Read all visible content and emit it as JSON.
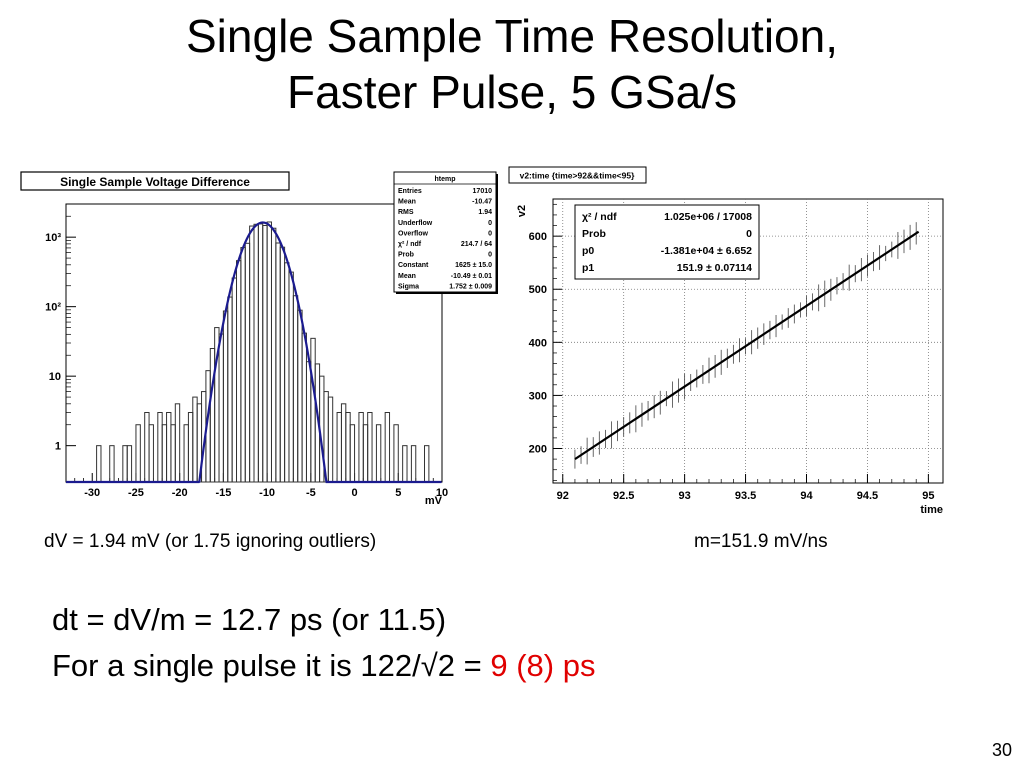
{
  "slide": {
    "title_line1": "Single Sample Time Resolution,",
    "title_line2": "Faster Pulse, 5 GSa/s",
    "caption_left": "dV = 1.94 mV (or 1.75 ignoring outliers)",
    "caption_right": "m=151.9 mV/ns",
    "line1": "dt = dV/m = 12.7 ps (or 11.5)",
    "line2_prefix": "For a single pulse it is 122/√2 = ",
    "line2_highlight": "9 (8) ps",
    "page_number": "30",
    "highlight_color": "#e00000"
  },
  "chart_data": [
    {
      "type": "histogram",
      "title": "Single Sample Voltage Difference",
      "xlabel": "mV",
      "ylabel": "",
      "xlim": [
        -33,
        10
      ],
      "ylim": [
        0.3,
        3000
      ],
      "yscale": "log",
      "xticks": [
        -30,
        -25,
        -20,
        -15,
        -10,
        -5,
        0,
        5,
        10
      ],
      "yticks": [
        {
          "value": 1,
          "label": "1"
        },
        {
          "value": 10,
          "label": "10"
        },
        {
          "value": 100,
          "label": "10²"
        },
        {
          "value": 1000,
          "label": "10³"
        }
      ],
      "stats_box": {
        "title": "htemp",
        "rows": [
          [
            "Entries",
            "17010"
          ],
          [
            "Mean",
            "-10.47"
          ],
          [
            "RMS",
            "1.94"
          ],
          [
            "Underflow",
            "0"
          ],
          [
            "Overflow",
            "0"
          ],
          [
            "χ² / ndf",
            "214.7 / 64"
          ],
          [
            "Prob",
            "0"
          ],
          [
            "Constant",
            "1625 ± 15.0"
          ],
          [
            "Mean",
            "-10.49 ± 0.01"
          ],
          [
            "Sigma",
            "1.752 ± 0.009"
          ]
        ]
      },
      "fit": {
        "function": "gaus",
        "constant": 1625,
        "mean": -10.49,
        "sigma": 1.752
      },
      "bin_width": 0.5,
      "bins": [
        {
          "x": -29.5,
          "y": 1
        },
        {
          "x": -28.0,
          "y": 1
        },
        {
          "x": -26.5,
          "y": 1
        },
        {
          "x": -26.0,
          "y": 1
        },
        {
          "x": -25.0,
          "y": 2
        },
        {
          "x": -24.0,
          "y": 3
        },
        {
          "x": -23.5,
          "y": 2
        },
        {
          "x": -22.5,
          "y": 3
        },
        {
          "x": -22.0,
          "y": 2
        },
        {
          "x": -21.5,
          "y": 3
        },
        {
          "x": -21.0,
          "y": 2
        },
        {
          "x": -20.5,
          "y": 4
        },
        {
          "x": -19.5,
          "y": 2
        },
        {
          "x": -19.0,
          "y": 3
        },
        {
          "x": -18.5,
          "y": 5
        },
        {
          "x": -18.0,
          "y": 4
        },
        {
          "x": -17.5,
          "y": 6
        },
        {
          "x": -17.0,
          "y": 12
        },
        {
          "x": -16.5,
          "y": 25
        },
        {
          "x": -16.0,
          "y": 50
        },
        {
          "x": -5.0,
          "y": 35
        },
        {
          "x": -4.5,
          "y": 15
        },
        {
          "x": -4.0,
          "y": 10
        },
        {
          "x": -3.5,
          "y": 6
        },
        {
          "x": -3.0,
          "y": 5
        },
        {
          "x": -2.0,
          "y": 3
        },
        {
          "x": -1.5,
          "y": 4
        },
        {
          "x": -1.0,
          "y": 3
        },
        {
          "x": -0.5,
          "y": 2
        },
        {
          "x": 0.5,
          "y": 3
        },
        {
          "x": 1.0,
          "y": 2
        },
        {
          "x": 1.5,
          "y": 3
        },
        {
          "x": 2.5,
          "y": 2
        },
        {
          "x": 3.5,
          "y": 3
        },
        {
          "x": 4.5,
          "y": 2
        },
        {
          "x": 5.5,
          "y": 1
        },
        {
          "x": 6.5,
          "y": 1
        },
        {
          "x": 8.0,
          "y": 1
        }
      ]
    },
    {
      "type": "scatter",
      "title": "v2:time {time>92&&time<95}",
      "xlabel": "time",
      "ylabel": "v2",
      "xlim": [
        91.92,
        95.12
      ],
      "ylim": [
        135,
        670
      ],
      "xticks": [
        92,
        92.5,
        93,
        93.5,
        94,
        94.5,
        95
      ],
      "yticks": [
        200,
        300,
        400,
        500,
        600
      ],
      "grid": true,
      "stats_box": {
        "rows": [
          [
            "χ² / ndf",
            "1.025e+06 / 17008"
          ],
          [
            "Prob",
            "0"
          ],
          [
            "p0",
            "-1.381e+04 ± 6.652"
          ],
          [
            "p1",
            "151.9 ± 0.07114"
          ]
        ]
      },
      "fit": {
        "function": "pol1",
        "p0": -13810,
        "p1": 151.9,
        "x_range": [
          92.1,
          94.92
        ]
      },
      "points_x_range": [
        92.1,
        94.92
      ],
      "error_half_height": 20
    }
  ]
}
